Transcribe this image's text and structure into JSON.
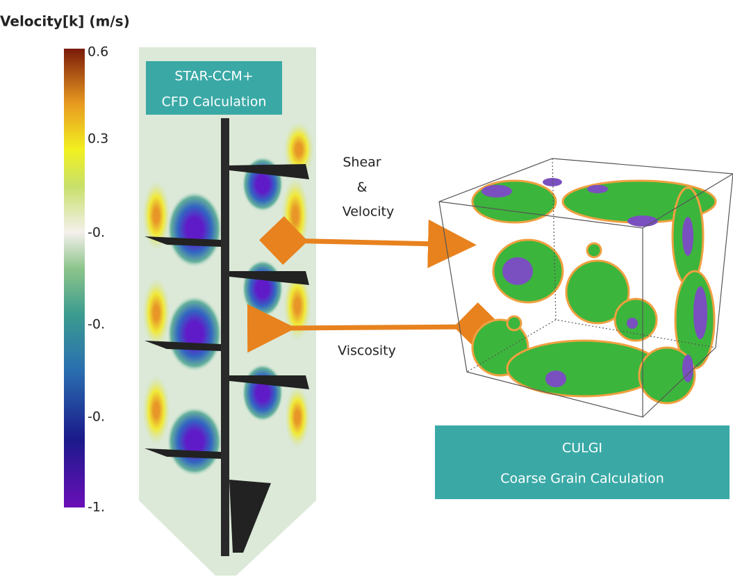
{
  "colorbar": {
    "title": "Velocity[k] (m/s)",
    "ticks": [
      "0.6",
      "0.3",
      "-0.",
      "-0.",
      "-0.",
      "-1."
    ]
  },
  "cfd_panel": {
    "label_lines": [
      "STAR-CCM+",
      "CFD Calculation"
    ]
  },
  "links": [
    {
      "label_lines": [
        "Shear",
        "&",
        "Velocity"
      ]
    },
    {
      "label_lines": [
        "Viscosity"
      ]
    }
  ],
  "cg_panel": {
    "label_lines": [
      "CULGI",
      "Coarse Grain Calculation"
    ]
  }
}
